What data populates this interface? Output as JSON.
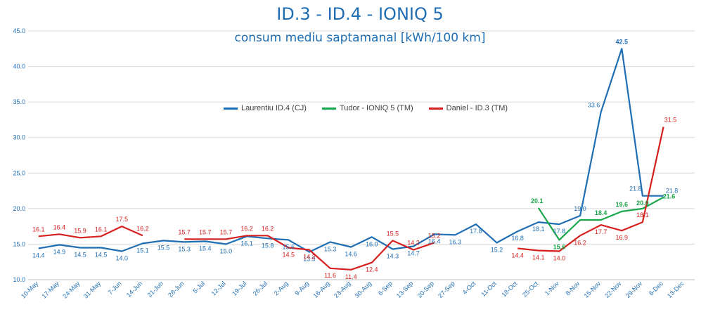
{
  "chart_data": {
    "type": "line",
    "title": "ID.3 - ID.4 - IONIQ 5",
    "subtitle": "consum mediu saptamanal [kWh/100 km]",
    "xlabel": "",
    "ylabel": "",
    "ylim": [
      10.0,
      45.0
    ],
    "yticks": [
      "10.0",
      "15.0",
      "20.0",
      "25.0",
      "30.0",
      "35.0",
      "40.0",
      "45.0"
    ],
    "grid": true,
    "legend_position": "center",
    "categories": [
      "10-May",
      "17-May",
      "24-May",
      "31-May",
      "7-Jun",
      "14-Jun",
      "21-Jun",
      "28-Jun",
      "5-Jul",
      "12-Jul",
      "19-Jul",
      "26-Jul",
      "2-Aug",
      "9-Aug",
      "16-Aug",
      "23-Aug",
      "30-Aug",
      "6-Sep",
      "13-Sep",
      "20-Sep",
      "27-Sep",
      "4-Oct",
      "11-Oct",
      "18-Oct",
      "25-Oct",
      "1-Nov",
      "8-Nov",
      "15-Nov",
      "22-Nov",
      "29-Nov",
      "6-Dec",
      "13-Dec"
    ],
    "series": [
      {
        "name": "Laurentiu ID.4 (CJ)",
        "color": "#1f6eb3",
        "values": [
          14.4,
          14.9,
          14.5,
          14.5,
          14.0,
          15.1,
          15.5,
          15.3,
          15.4,
          15.0,
          16.1,
          15.8,
          15.6,
          13.9,
          15.3,
          14.6,
          16.0,
          14.3,
          14.7,
          16.4,
          16.3,
          17.8,
          15.2,
          16.8,
          18.1,
          17.8,
          19.0,
          33.6,
          42.5,
          21.8,
          21.8,
          null
        ],
        "labels": [
          "14.4",
          "14.9",
          "14.5",
          "14.5",
          "14.0",
          "15.1",
          "15.5",
          "15.3",
          "15.4",
          "15.0",
          "16.1",
          "15.8",
          "15.6",
          "13.9",
          "15.3",
          "14.6",
          "16.0",
          "14.3",
          "14.7",
          "16.4",
          "16.3",
          "17.8",
          "15.2",
          "16.8",
          "18.1",
          "17.8",
          "19.0",
          "33.6",
          "42.5",
          "21.8",
          "21.8",
          ""
        ]
      },
      {
        "name": "Tudor - IONIQ 5 (TM)",
        "color": "#1aa64a",
        "values": [
          null,
          null,
          null,
          null,
          null,
          null,
          null,
          null,
          null,
          null,
          null,
          null,
          null,
          null,
          null,
          null,
          null,
          null,
          null,
          null,
          null,
          null,
          null,
          null,
          20.1,
          15.6,
          18.4,
          18.4,
          19.6,
          20.0,
          21.6,
          null
        ],
        "labels": [
          "",
          "",
          "",
          "",
          "",
          "",
          "",
          "",
          "",
          "",
          "",
          "",
          "",
          "",
          "",
          "",
          "",
          "",
          "",
          "",
          "",
          "",
          "",
          "",
          "20.1",
          "15.6",
          "",
          "18.4",
          "19.6",
          "20.0",
          "21.6",
          ""
        ]
      },
      {
        "name": "Daniel - ID.3 (TM)",
        "color": "#d62020",
        "values": [
          16.1,
          16.4,
          15.9,
          16.1,
          17.5,
          16.2,
          null,
          15.7,
          15.7,
          15.7,
          16.2,
          16.2,
          14.5,
          14.2,
          11.6,
          11.4,
          12.4,
          15.5,
          14.2,
          15.2,
          null,
          null,
          null,
          14.4,
          14.1,
          14.0,
          16.2,
          17.7,
          16.9,
          18.1,
          31.5,
          null
        ],
        "labels": [
          "16.1",
          "16.4",
          "15.9",
          "16.1",
          "17.5",
          "16.2",
          "",
          "15.7",
          "15.7",
          "15.7",
          "16.2",
          "16.2",
          "14.5",
          "14.2",
          "11.6",
          "11.4",
          "12.4",
          "15.5",
          "14.2",
          "15.2",
          "",
          "",
          "",
          "14.4",
          "14.1",
          "14.0",
          "16.2",
          "17.7",
          "16.9",
          "18.1",
          "31.5",
          ""
        ]
      }
    ]
  }
}
